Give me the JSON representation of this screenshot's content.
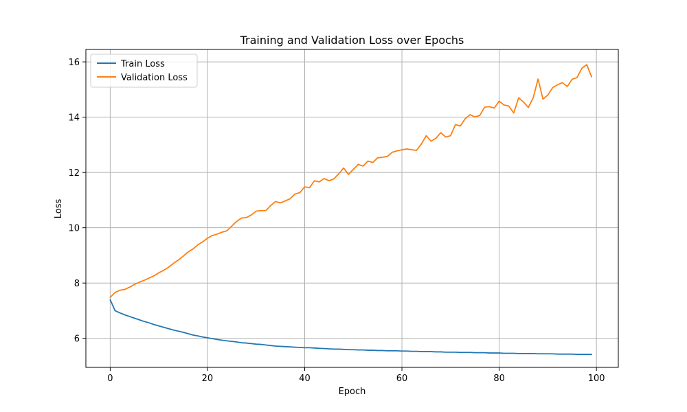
{
  "chart_data": {
    "type": "line",
    "title": "Training and Validation Loss over Epochs",
    "xlabel": "Epoch",
    "ylabel": "Loss",
    "xlim": [
      -5,
      104.5
    ],
    "ylim": [
      4.95,
      16.45
    ],
    "xticks": [
      0,
      20,
      40,
      60,
      80,
      100
    ],
    "yticks": [
      6,
      8,
      10,
      12,
      14,
      16
    ],
    "grid": true,
    "legend_position": "upper-left",
    "series": [
      {
        "name": "Train Loss",
        "color": "#1f77b4",
        "values": [
          7.4,
          7.0,
          6.92,
          6.85,
          6.79,
          6.73,
          6.67,
          6.61,
          6.56,
          6.5,
          6.45,
          6.4,
          6.35,
          6.3,
          6.26,
          6.22,
          6.17,
          6.12,
          6.09,
          6.05,
          6.02,
          5.99,
          5.96,
          5.93,
          5.91,
          5.89,
          5.87,
          5.84,
          5.83,
          5.81,
          5.79,
          5.78,
          5.76,
          5.74,
          5.72,
          5.71,
          5.7,
          5.69,
          5.68,
          5.67,
          5.66,
          5.66,
          5.65,
          5.64,
          5.63,
          5.62,
          5.61,
          5.61,
          5.6,
          5.59,
          5.59,
          5.58,
          5.58,
          5.57,
          5.57,
          5.56,
          5.56,
          5.55,
          5.55,
          5.55,
          5.54,
          5.54,
          5.53,
          5.53,
          5.52,
          5.52,
          5.52,
          5.51,
          5.51,
          5.5,
          5.5,
          5.5,
          5.49,
          5.49,
          5.49,
          5.48,
          5.48,
          5.48,
          5.47,
          5.47,
          5.47,
          5.46,
          5.46,
          5.46,
          5.45,
          5.45,
          5.45,
          5.45,
          5.44,
          5.44,
          5.44,
          5.44,
          5.43,
          5.43,
          5.43,
          5.43,
          5.42,
          5.42,
          5.42,
          5.42
        ]
      },
      {
        "name": "Validation Loss",
        "color": "#ff7f0e",
        "values": [
          7.48,
          7.66,
          7.74,
          7.77,
          7.85,
          7.95,
          8.03,
          8.1,
          8.18,
          8.26,
          8.37,
          8.46,
          8.57,
          8.71,
          8.83,
          8.97,
          9.12,
          9.23,
          9.38,
          9.49,
          9.62,
          9.72,
          9.77,
          9.84,
          9.89,
          10.06,
          10.23,
          10.35,
          10.37,
          10.46,
          10.6,
          10.62,
          10.62,
          10.8,
          10.95,
          10.9,
          10.97,
          11.05,
          11.22,
          11.27,
          11.48,
          11.45,
          11.7,
          11.66,
          11.78,
          11.7,
          11.77,
          11.95,
          12.16,
          11.93,
          12.11,
          12.29,
          12.23,
          12.41,
          12.36,
          12.53,
          12.55,
          12.58,
          12.73,
          12.78,
          12.82,
          12.85,
          12.82,
          12.8,
          13.03,
          13.33,
          13.13,
          13.24,
          13.44,
          13.28,
          13.33,
          13.73,
          13.68,
          13.94,
          14.09,
          14.01,
          14.06,
          14.36,
          14.38,
          14.33,
          14.58,
          14.44,
          14.4,
          14.15,
          14.7,
          14.55,
          14.35,
          14.7,
          15.38,
          14.65,
          14.8,
          15.07,
          15.17,
          15.25,
          15.11,
          15.37,
          15.43,
          15.77,
          15.9,
          15.46
        ]
      }
    ]
  }
}
